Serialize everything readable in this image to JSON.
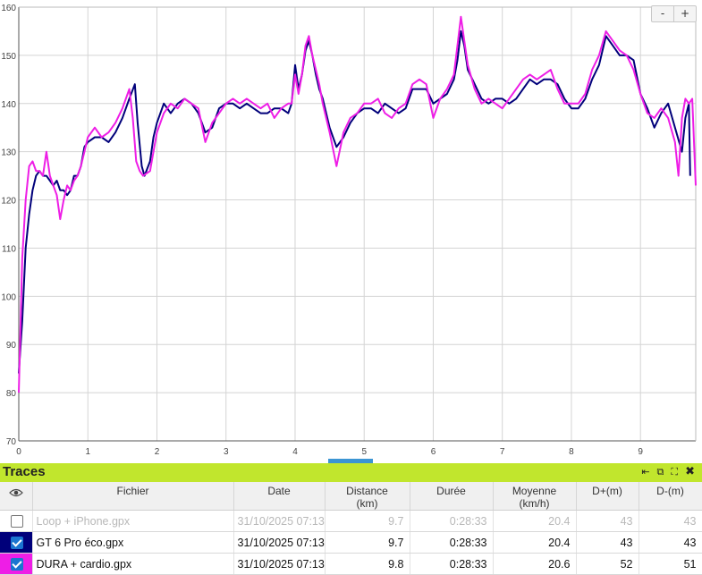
{
  "zoom": {
    "minus_label": "-",
    "plus_label": "+"
  },
  "chart_data": {
    "type": "line",
    "xlabel": "",
    "ylabel": "",
    "xlim": [
      0,
      9.8
    ],
    "ylim": [
      70,
      160
    ],
    "x_ticks": [
      "0",
      "1",
      "2",
      "3",
      "4",
      "5",
      "6",
      "7",
      "8",
      "9"
    ],
    "y_ticks": [
      "70",
      "80",
      "90",
      "100",
      "110",
      "120",
      "130",
      "140",
      "150",
      "160"
    ],
    "grid": true,
    "series": [
      {
        "color": "#00007a",
        "points": [
          [
            0,
            84
          ],
          [
            0.05,
            95
          ],
          [
            0.1,
            110
          ],
          [
            0.15,
            117
          ],
          [
            0.2,
            122
          ],
          [
            0.25,
            125
          ],
          [
            0.3,
            126
          ],
          [
            0.35,
            125
          ],
          [
            0.4,
            125
          ],
          [
            0.45,
            124
          ],
          [
            0.5,
            123
          ],
          [
            0.55,
            124
          ],
          [
            0.6,
            122
          ],
          [
            0.65,
            122
          ],
          [
            0.7,
            121
          ],
          [
            0.75,
            122
          ],
          [
            0.8,
            125
          ],
          [
            0.85,
            125
          ],
          [
            0.9,
            127
          ],
          [
            0.95,
            131
          ],
          [
            1.0,
            132
          ],
          [
            1.1,
            133
          ],
          [
            1.2,
            133
          ],
          [
            1.3,
            132
          ],
          [
            1.4,
            134
          ],
          [
            1.5,
            137
          ],
          [
            1.6,
            141
          ],
          [
            1.68,
            144
          ],
          [
            1.72,
            136
          ],
          [
            1.78,
            127
          ],
          [
            1.82,
            125
          ],
          [
            1.9,
            128
          ],
          [
            1.95,
            133
          ],
          [
            2.0,
            136
          ],
          [
            2.1,
            140
          ],
          [
            2.2,
            138
          ],
          [
            2.3,
            140
          ],
          [
            2.4,
            141
          ],
          [
            2.5,
            140
          ],
          [
            2.6,
            138
          ],
          [
            2.7,
            134
          ],
          [
            2.8,
            135
          ],
          [
            2.9,
            139
          ],
          [
            3.0,
            140
          ],
          [
            3.1,
            140
          ],
          [
            3.2,
            139
          ],
          [
            3.3,
            140
          ],
          [
            3.4,
            139
          ],
          [
            3.5,
            138
          ],
          [
            3.6,
            138
          ],
          [
            3.7,
            139
          ],
          [
            3.8,
            139
          ],
          [
            3.9,
            138
          ],
          [
            3.95,
            140
          ],
          [
            4.0,
            148
          ],
          [
            4.05,
            143
          ],
          [
            4.1,
            146
          ],
          [
            4.15,
            151
          ],
          [
            4.2,
            153
          ],
          [
            4.25,
            150
          ],
          [
            4.3,
            146
          ],
          [
            4.35,
            143
          ],
          [
            4.4,
            141
          ],
          [
            4.5,
            135
          ],
          [
            4.6,
            131
          ],
          [
            4.7,
            133
          ],
          [
            4.8,
            136
          ],
          [
            4.9,
            138
          ],
          [
            5.0,
            139
          ],
          [
            5.1,
            139
          ],
          [
            5.2,
            138
          ],
          [
            5.3,
            140
          ],
          [
            5.4,
            139
          ],
          [
            5.5,
            138
          ],
          [
            5.6,
            139
          ],
          [
            5.7,
            143
          ],
          [
            5.8,
            143
          ],
          [
            5.9,
            143
          ],
          [
            6.0,
            140
          ],
          [
            6.1,
            141
          ],
          [
            6.2,
            142
          ],
          [
            6.3,
            145
          ],
          [
            6.35,
            149
          ],
          [
            6.4,
            155
          ],
          [
            6.45,
            152
          ],
          [
            6.5,
            147
          ],
          [
            6.6,
            144
          ],
          [
            6.7,
            141
          ],
          [
            6.8,
            140
          ],
          [
            6.9,
            141
          ],
          [
            7.0,
            141
          ],
          [
            7.1,
            140
          ],
          [
            7.2,
            141
          ],
          [
            7.3,
            143
          ],
          [
            7.4,
            145
          ],
          [
            7.5,
            144
          ],
          [
            7.6,
            145
          ],
          [
            7.7,
            145
          ],
          [
            7.8,
            144
          ],
          [
            7.9,
            141
          ],
          [
            8.0,
            139
          ],
          [
            8.1,
            139
          ],
          [
            8.2,
            141
          ],
          [
            8.3,
            145
          ],
          [
            8.4,
            148
          ],
          [
            8.5,
            154
          ],
          [
            8.6,
            152
          ],
          [
            8.7,
            150
          ],
          [
            8.8,
            150
          ],
          [
            8.9,
            149
          ],
          [
            9.0,
            142
          ],
          [
            9.1,
            139
          ],
          [
            9.2,
            135
          ],
          [
            9.3,
            138
          ],
          [
            9.4,
            140
          ],
          [
            9.5,
            135
          ],
          [
            9.6,
            130
          ],
          [
            9.65,
            137
          ],
          [
            9.7,
            140
          ],
          [
            9.72,
            125
          ]
        ]
      },
      {
        "color": "#ee1ee6",
        "points": [
          [
            0,
            80
          ],
          [
            0.05,
            108
          ],
          [
            0.1,
            120
          ],
          [
            0.15,
            127
          ],
          [
            0.2,
            128
          ],
          [
            0.25,
            126
          ],
          [
            0.3,
            126
          ],
          [
            0.35,
            125
          ],
          [
            0.4,
            130
          ],
          [
            0.45,
            125
          ],
          [
            0.5,
            123
          ],
          [
            0.55,
            121
          ],
          [
            0.6,
            116
          ],
          [
            0.65,
            120
          ],
          [
            0.7,
            123
          ],
          [
            0.75,
            122
          ],
          [
            0.8,
            124
          ],
          [
            0.85,
            125
          ],
          [
            0.9,
            127
          ],
          [
            0.95,
            130
          ],
          [
            1.0,
            133
          ],
          [
            1.1,
            135
          ],
          [
            1.2,
            133
          ],
          [
            1.3,
            134
          ],
          [
            1.4,
            136
          ],
          [
            1.5,
            139
          ],
          [
            1.6,
            143
          ],
          [
            1.65,
            137
          ],
          [
            1.7,
            128
          ],
          [
            1.75,
            126
          ],
          [
            1.8,
            125
          ],
          [
            1.9,
            126
          ],
          [
            1.95,
            130
          ],
          [
            2.0,
            134
          ],
          [
            2.1,
            138
          ],
          [
            2.2,
            140
          ],
          [
            2.3,
            139
          ],
          [
            2.4,
            141
          ],
          [
            2.5,
            140
          ],
          [
            2.6,
            139
          ],
          [
            2.7,
            132
          ],
          [
            2.8,
            136
          ],
          [
            2.9,
            138
          ],
          [
            3.0,
            140
          ],
          [
            3.1,
            141
          ],
          [
            3.2,
            140
          ],
          [
            3.3,
            141
          ],
          [
            3.4,
            140
          ],
          [
            3.5,
            139
          ],
          [
            3.6,
            140
          ],
          [
            3.7,
            137
          ],
          [
            3.8,
            139
          ],
          [
            3.9,
            140
          ],
          [
            3.95,
            140
          ],
          [
            4.0,
            146
          ],
          [
            4.05,
            142
          ],
          [
            4.1,
            146
          ],
          [
            4.15,
            152
          ],
          [
            4.2,
            154
          ],
          [
            4.25,
            150
          ],
          [
            4.3,
            147
          ],
          [
            4.35,
            144
          ],
          [
            4.4,
            140
          ],
          [
            4.5,
            134
          ],
          [
            4.6,
            127
          ],
          [
            4.7,
            134
          ],
          [
            4.8,
            137
          ],
          [
            4.9,
            138
          ],
          [
            5.0,
            140
          ],
          [
            5.1,
            140
          ],
          [
            5.2,
            141
          ],
          [
            5.3,
            138
          ],
          [
            5.4,
            137
          ],
          [
            5.5,
            139
          ],
          [
            5.6,
            140
          ],
          [
            5.7,
            144
          ],
          [
            5.8,
            145
          ],
          [
            5.9,
            144
          ],
          [
            6.0,
            137
          ],
          [
            6.1,
            141
          ],
          [
            6.2,
            143
          ],
          [
            6.3,
            146
          ],
          [
            6.35,
            152
          ],
          [
            6.4,
            158
          ],
          [
            6.45,
            153
          ],
          [
            6.5,
            148
          ],
          [
            6.6,
            143
          ],
          [
            6.7,
            140
          ],
          [
            6.8,
            141
          ],
          [
            6.9,
            140
          ],
          [
            7.0,
            139
          ],
          [
            7.1,
            141
          ],
          [
            7.2,
            143
          ],
          [
            7.3,
            145
          ],
          [
            7.4,
            146
          ],
          [
            7.5,
            145
          ],
          [
            7.6,
            146
          ],
          [
            7.7,
            147
          ],
          [
            7.8,
            143
          ],
          [
            7.9,
            140
          ],
          [
            8.0,
            140
          ],
          [
            8.1,
            140
          ],
          [
            8.2,
            142
          ],
          [
            8.3,
            147
          ],
          [
            8.4,
            150
          ],
          [
            8.5,
            155
          ],
          [
            8.6,
            153
          ],
          [
            8.7,
            151
          ],
          [
            8.8,
            150
          ],
          [
            8.9,
            147
          ],
          [
            9.0,
            142
          ],
          [
            9.1,
            138
          ],
          [
            9.2,
            137
          ],
          [
            9.3,
            139
          ],
          [
            9.4,
            137
          ],
          [
            9.5,
            132
          ],
          [
            9.55,
            125
          ],
          [
            9.6,
            137
          ],
          [
            9.65,
            141
          ],
          [
            9.7,
            140
          ],
          [
            9.75,
            141
          ],
          [
            9.8,
            123
          ]
        ]
      }
    ]
  },
  "panel": {
    "title": "Traces",
    "icons": [
      "pin-left-icon",
      "restore-icon",
      "fullscreen-icon",
      "close-icon"
    ],
    "columns": {
      "fichier": "Fichier",
      "date": "Date",
      "distance": "Distance",
      "distance_unit": "(km)",
      "duree": "Durée",
      "moyenne": "Moyenne",
      "moyenne_unit": "(km/h)",
      "dplus": "D+(m)",
      "dminus": "D-(m)"
    },
    "rows": [
      {
        "checked": false,
        "color": "",
        "fichier": "Loop + iPhone.gpx",
        "date": "31/10/2025 07:13",
        "distance": "9.7",
        "duree": "0:28:33",
        "moyenne": "20.4",
        "dplus": "43",
        "dminus": "43"
      },
      {
        "checked": true,
        "color": "#00007a",
        "fichier": "GT 6 Pro éco.gpx",
        "date": "31/10/2025 07:13",
        "distance": "9.7",
        "duree": "0:28:33",
        "moyenne": "20.4",
        "dplus": "43",
        "dminus": "43"
      },
      {
        "checked": true,
        "color": "#ee1ee6",
        "fichier": "DURA + cardio.gpx",
        "date": "31/10/2025 07:13",
        "distance": "9.8",
        "duree": "0:28:33",
        "moyenne": "20.6",
        "dplus": "52",
        "dminus": "51"
      }
    ]
  }
}
